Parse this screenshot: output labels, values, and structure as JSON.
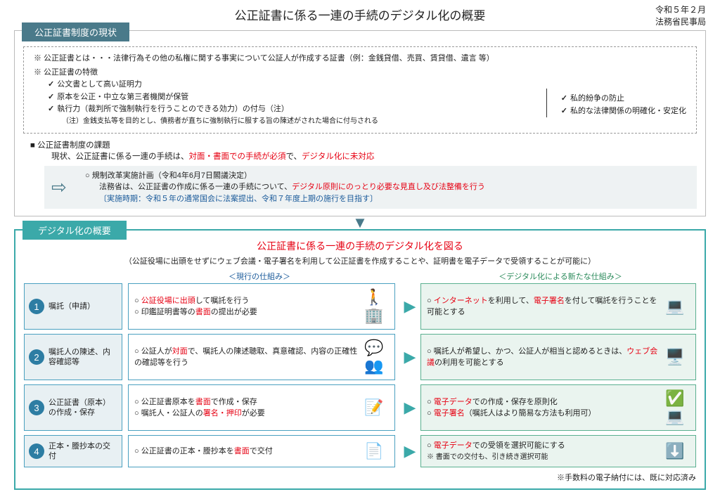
{
  "header": {
    "title": "公正証書に係る一連の手続のデジタル化の概要",
    "date": "令和５年２月",
    "department": "法務省民事局"
  },
  "section1": {
    "tag": "公正証書制度の現状",
    "definition": "※ 公正証書とは・・・法律行為その他の私権に関する事実について公証人が作成する証書（例：金銭貸借、売買、賃貸借、遺言 等）",
    "feat_title": "※ 公正証書の特徴",
    "features_left": [
      "公文書として高い証明力",
      "原本を公正・中立な第三者機関が保管",
      "執行力（裁判所で強制執行を行うことのできる効力）の付与（注）"
    ],
    "note_small": "（注）金銭支払等を目的とし、債務者が直ちに強制執行に服する旨の陳述がされた場合に付与される",
    "features_right": [
      "私的紛争の防止",
      "私的な法律関係の明確化・安定化"
    ],
    "issue_title": "公正証書制度の課題",
    "issue_text1": "現状、公正証書に係る一連の手続は、",
    "issue_red1": "対面・書面での手続が必須",
    "issue_text2": "で、",
    "issue_red2": "デジタル化に未対応",
    "plan_title": "○ 規制改革実施計画（令和4年6月7日閣議決定）",
    "plan_text1": "法務省は、公正証書の作成に係る一連の手続について、",
    "plan_red": "デジタル原則にのっとり必要な見直し及び法整備を行う",
    "plan_note": "〔実施時期：令和５年の通常国会に法案提出、令和７年度上期の施行を目指す〕"
  },
  "section2": {
    "tag": "デジタル化の概要",
    "title": "公正証書に係る一連の手続のデジタル化を図る",
    "subtitle": "（公証役場に出頭をせずにウェブ会議・電子署名を利用して公正証書を作成することや、証明書を電子データで受領することが可能に）",
    "col_current": "＜現行の仕組み＞",
    "col_new": "＜デジタル化による新たな仕組み＞",
    "rows": [
      {
        "num": "1",
        "step": "嘱託（申請）",
        "current": [
          {
            "pre": "",
            "red": "公証役場に出頭",
            "post": "して嘱託を行う"
          },
          {
            "pre": "印鑑証明書等の",
            "red": "書面",
            "post": "の提出が必要"
          }
        ],
        "icon": "🚶 🏢",
        "new": [
          {
            "pre": "",
            "red": "インターネット",
            "post": "を利用して、",
            "red2": "電子署名",
            "post2": "を付して嘱託を行うことを可能とする"
          }
        ],
        "icon2": "💻"
      },
      {
        "num": "2",
        "step": "嘱託人の陳述、内容確認等",
        "current": [
          {
            "pre": "公証人が",
            "red": "対面",
            "post": "で、嘱託人の陳述聴取、真意確認、内容の正確性の確認等を行う"
          }
        ],
        "icon": "💬 👥",
        "new": [
          {
            "pre": "嘱託人が希望し、かつ、公証人が相当と認めるときは、",
            "red": "ウェブ会議",
            "post": "の利用を可能とする"
          }
        ],
        "icon2": "🖥️"
      },
      {
        "num": "3",
        "step": "公正証書（原本）の作成・保存",
        "current": [
          {
            "pre": "公正証書原本を",
            "red": "書面",
            "post": "で作成・保存"
          },
          {
            "pre": "嘱託人・公証人の",
            "red": "署名・押印",
            "post": "が必要"
          }
        ],
        "icon": "📝",
        "new": [
          {
            "pre": "",
            "red": "電子データ",
            "post": "での作成・保存を原則化"
          },
          {
            "pre": "",
            "red": "電子署名",
            "post": "（嘱託人はより簡易な方法も利用可）"
          }
        ],
        "icon2": "✅💻"
      },
      {
        "num": "4",
        "step": "正本・謄抄本の交付",
        "current": [
          {
            "pre": "公正証書の正本・謄抄本を",
            "red": "書面",
            "post": "で交付"
          }
        ],
        "icon": "📄",
        "new": [
          {
            "pre": "",
            "red": "電子データ",
            "post": "での受領を選択可能にする"
          },
          {
            "plain": "※ 書面での交付も、引き続き選択可能"
          }
        ],
        "icon2": "⬇️"
      }
    ],
    "bottom_note": "※手数料の電子納付には、既に対応済み"
  }
}
